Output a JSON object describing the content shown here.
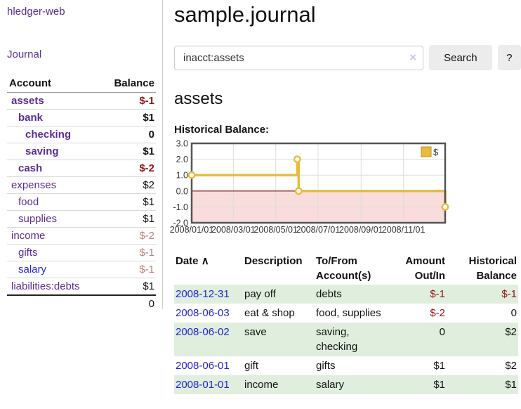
{
  "app": {
    "title": "hledger-web"
  },
  "sidebar": {
    "journal_label": "Journal",
    "accounts_table": {
      "headers": {
        "account": "Account",
        "balance": "Balance"
      },
      "rows": [
        {
          "name": "assets",
          "balance": "$-1",
          "depth": 1,
          "bold": true,
          "bal_style": "neg-strong",
          "color": "purple"
        },
        {
          "name": "bank",
          "balance": "$1",
          "depth": 2,
          "bold": true,
          "bal_style": "plain",
          "color": "purple"
        },
        {
          "name": "checking",
          "balance": "0",
          "depth": 3,
          "bold": true,
          "bal_style": "plain",
          "color": "purple"
        },
        {
          "name": "saving",
          "balance": "$1",
          "depth": 3,
          "bold": true,
          "bal_style": "plain",
          "color": "purple"
        },
        {
          "name": "cash",
          "balance": "$-2",
          "depth": 2,
          "bold": true,
          "bal_style": "neg-strong",
          "color": "purple"
        },
        {
          "name": "expenses",
          "balance": "$2",
          "depth": 1,
          "bold": false,
          "bal_style": "plain",
          "color": "purple"
        },
        {
          "name": "food",
          "balance": "$1",
          "depth": 2,
          "bold": false,
          "bal_style": "plain",
          "color": "purple"
        },
        {
          "name": "supplies",
          "balance": "$1",
          "depth": 2,
          "bold": false,
          "bal_style": "plain",
          "color": "purple"
        },
        {
          "name": "income",
          "balance": "$-2",
          "depth": 1,
          "bold": false,
          "bal_style": "neg-faded",
          "color": "purple"
        },
        {
          "name": "gifts",
          "balance": "$-1",
          "depth": 2,
          "bold": false,
          "bal_style": "neg-faded",
          "color": "purple"
        },
        {
          "name": "salary",
          "balance": "$-1",
          "depth": 2,
          "bold": false,
          "bal_style": "neg-faded",
          "color": "blue"
        },
        {
          "name": "liabilities:debts",
          "balance": "$1",
          "depth": 1,
          "bold": false,
          "bal_style": "plain",
          "color": "purple"
        }
      ],
      "total": "0"
    }
  },
  "header": {
    "title": "sample.journal"
  },
  "search": {
    "query": "inacct:assets",
    "clear_icon": "×",
    "button_label": "Search",
    "help_label": "?"
  },
  "account_page": {
    "heading": "assets"
  },
  "chart_data": {
    "type": "line",
    "title": "Historical Balance:",
    "x_range": [
      "2008-01-01",
      "2008-12-31"
    ],
    "x_tick_dates": [
      "2008-01-01",
      "2008-03-01",
      "2008-05-01",
      "2008-07-01",
      "2008-09-01",
      "2008-11-01"
    ],
    "x_tick_labels": [
      "2008/01/01",
      "2008/03/01",
      "2008/05/01",
      "2008/07/01",
      "2008/09/01",
      "2008/11/01"
    ],
    "y_ticks": [
      3.0,
      2.0,
      1.0,
      0.0,
      -1.0,
      -2.0
    ],
    "ylim": [
      -2.0,
      3.0
    ],
    "grid": true,
    "legend_position": "top-right",
    "series": [
      {
        "name": "$",
        "step": true,
        "points": [
          {
            "date": "2008-01-01",
            "value": 1
          },
          {
            "date": "2008-06-01",
            "value": 2
          },
          {
            "date": "2008-06-03",
            "value": 0
          },
          {
            "date": "2008-12-31",
            "value": -1
          }
        ]
      }
    ],
    "colors": {
      "line": "#e8bc3c",
      "marker_fill": "#ffffff",
      "negative_fill": "#f9dcdc",
      "zero_line": "#8b0000",
      "grid": "#dddddd",
      "border": "#555555",
      "legend_box_border": "#b8922a",
      "tick_text": "#333333"
    }
  },
  "register_table": {
    "headers": {
      "date": "Date",
      "sort_icon": "∧",
      "description": "Description",
      "accounts": "To/From Account(s)",
      "amount": "Amount Out/In",
      "balance": "Historical Balance"
    },
    "rows": [
      {
        "date": "2008-12-31",
        "description": "pay off",
        "accounts": "debts",
        "amount": "$-1",
        "amount_neg": true,
        "balance": "$-1",
        "balance_neg": true
      },
      {
        "date": "2008-06-03",
        "description": "eat & shop",
        "accounts": "food, supplies",
        "amount": "$-2",
        "amount_neg": true,
        "balance": "0",
        "balance_neg": false
      },
      {
        "date": "2008-06-02",
        "description": "save",
        "accounts": "saving, checking",
        "amount": "0",
        "amount_neg": false,
        "balance": "$2",
        "balance_neg": false
      },
      {
        "date": "2008-06-01",
        "description": "gift",
        "accounts": "gifts",
        "amount": "$1",
        "amount_neg": false,
        "balance": "$2",
        "balance_neg": false
      },
      {
        "date": "2008-01-01",
        "description": "income",
        "accounts": "salary",
        "amount": "$1",
        "amount_neg": false,
        "balance": "$1",
        "balance_neg": false
      }
    ]
  }
}
